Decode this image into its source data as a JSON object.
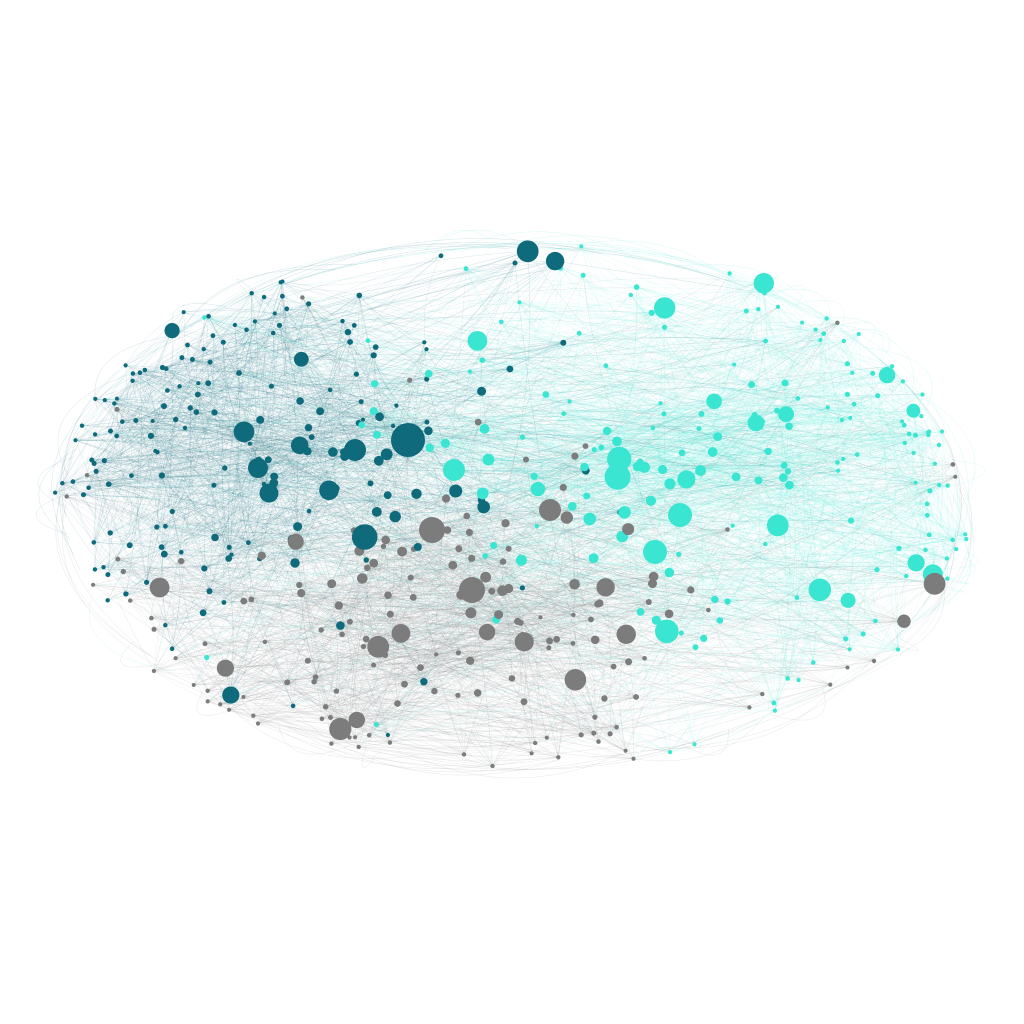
{
  "diagram": {
    "type": "network-graph",
    "background": "#ffffff",
    "communities": [
      {
        "id": "dark-teal",
        "color": "#0f6a7c"
      },
      {
        "id": "gray",
        "color": "#7c7c7c"
      },
      {
        "id": "turquoise",
        "color": "#3ae6d2"
      }
    ]
  }
}
